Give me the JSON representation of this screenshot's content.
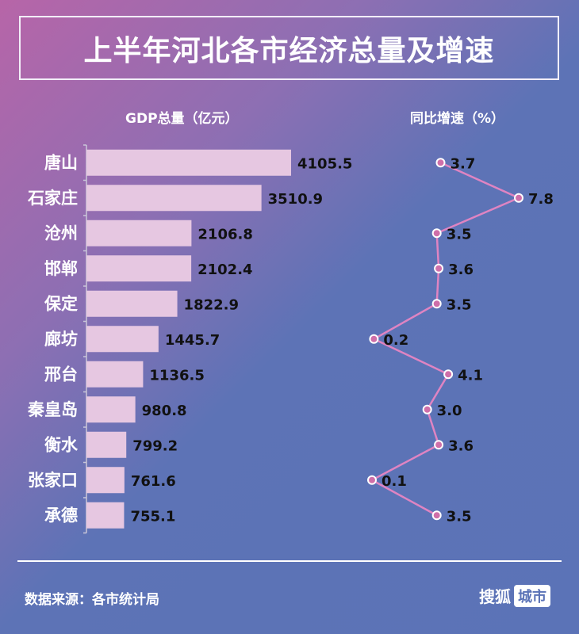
{
  "title": "上半年河北各市经济总量及增速",
  "headers": {
    "gdp": "GDP总量（亿元）",
    "growth": "同比增速（%）"
  },
  "footer": {
    "source": "数据来源：各市统计局",
    "brand_a": "搜狐",
    "brand_b": "城市"
  },
  "colors": {
    "bar": "#e6c7e1",
    "line": "#df84c2",
    "point": "#cf6fa9"
  },
  "chart_data": [
    {
      "type": "bar",
      "orientation": "horizontal",
      "categories": [
        "唐山",
        "石家庄",
        "沧州",
        "邯郸",
        "保定",
        "廊坊",
        "邢台",
        "秦皇岛",
        "衡水",
        "张家口",
        "承德"
      ],
      "values": [
        4105.5,
        3510.9,
        2106.8,
        2102.4,
        1822.9,
        1445.7,
        1136.5,
        980.8,
        799.2,
        761.6,
        755.1
      ],
      "value_labels": [
        "4105.5",
        "3510.9",
        "2106.8",
        "2102.4",
        "1822.9",
        "1445.7",
        "1136.5",
        "980.8",
        "799.2",
        "761.6",
        "755.1"
      ],
      "title": "GDP总量（亿元）",
      "grid": false
    },
    {
      "type": "line",
      "orientation": "vertical",
      "categories": [
        "唐山",
        "石家庄",
        "沧州",
        "邯郸",
        "保定",
        "廊坊",
        "邢台",
        "秦皇岛",
        "衡水",
        "张家口",
        "承德"
      ],
      "values": [
        3.7,
        7.8,
        3.5,
        3.6,
        3.5,
        0.2,
        4.1,
        3.0,
        3.6,
        0.1,
        3.5
      ],
      "value_labels": [
        "3.7",
        "7.8",
        "3.5",
        "3.6",
        "3.5",
        "0.2",
        "4.1",
        "3.0",
        "3.6",
        "0.1",
        "3.5"
      ],
      "title": "同比增速（%）",
      "grid": false
    }
  ]
}
